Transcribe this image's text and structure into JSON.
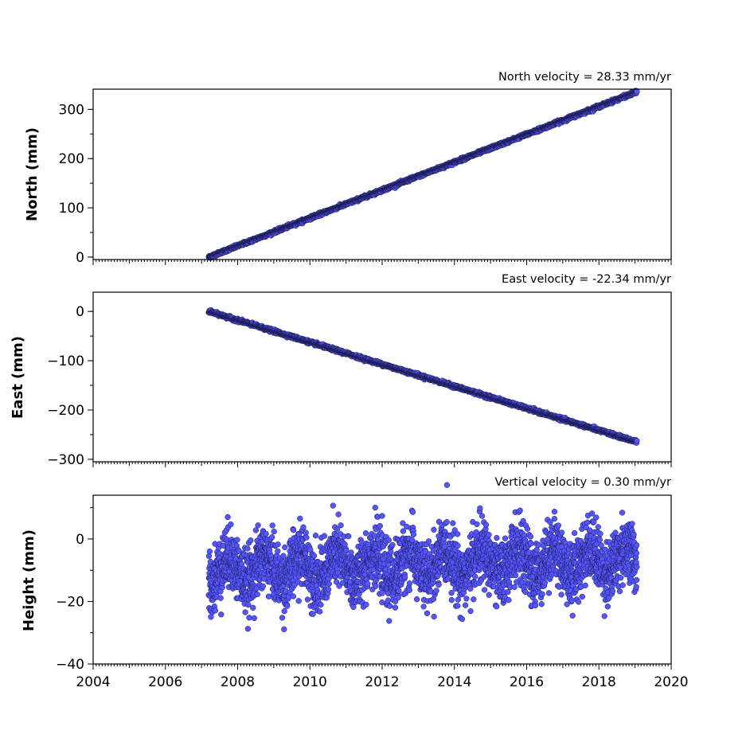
{
  "chart_data": [
    {
      "type": "scatter",
      "id": "north",
      "title": "North velocity = 28.33 mm/yr",
      "ylabel": "North (mm)",
      "xlim": [
        2004,
        2020
      ],
      "ylim": [
        -5,
        341
      ],
      "yticks": [
        0,
        100,
        200,
        300
      ],
      "ytick_labels": [
        "0",
        "100",
        "200",
        "300"
      ],
      "x_range": [
        2007.2,
        2019.05
      ],
      "trend_start": 0,
      "velocity_mm_per_yr": 28.33,
      "noise_mm": 1.5,
      "seasonal_mm": 0,
      "marker_color": "#5555ff",
      "marker_edge": "#1a1a4a"
    },
    {
      "type": "scatter",
      "id": "east",
      "title": "East velocity = -22.34 mm/yr",
      "ylabel": "East (mm)",
      "xlim": [
        2004,
        2020
      ],
      "ylim": [
        -305,
        39
      ],
      "yticks": [
        0,
        -100,
        -200,
        -300
      ],
      "ytick_labels": [
        "0",
        "−100",
        "−200",
        "−300"
      ],
      "x_range": [
        2007.2,
        2019.05
      ],
      "trend_start": 0,
      "velocity_mm_per_yr": -22.34,
      "noise_mm": 1.5,
      "seasonal_mm": 0,
      "marker_color": "#5555ff",
      "marker_edge": "#1a1a4a"
    },
    {
      "type": "scatter",
      "id": "height",
      "title": "Vertical velocity = 0.30 mm/yr",
      "ylabel": "Height (mm)",
      "xlim": [
        2004,
        2020
      ],
      "ylim": [
        -40,
        14
      ],
      "yticks": [
        0,
        -20,
        -40
      ],
      "ytick_labels": [
        "0",
        "−20",
        "−40"
      ],
      "xticks": [
        2004,
        2006,
        2008,
        2010,
        2012,
        2014,
        2016,
        2018,
        2020
      ],
      "xtick_labels": [
        "2004",
        "2006",
        "2008",
        "2010",
        "2012",
        "2014",
        "2016",
        "2018",
        "2020"
      ],
      "x_range": [
        2007.2,
        2019.05
      ],
      "trend_start": -10,
      "velocity_mm_per_yr": 0.3,
      "noise_mm": 5,
      "seasonal_mm": 4,
      "marker_color": "#5555ff",
      "marker_edge": "#1a1a4a"
    }
  ]
}
